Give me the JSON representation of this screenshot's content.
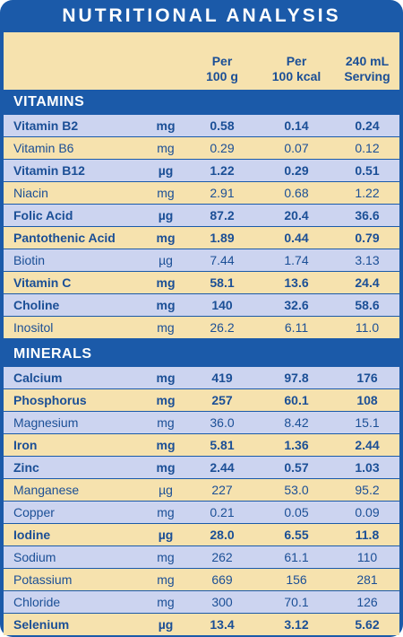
{
  "title": "NUTRITIONAL ANALYSIS",
  "colors": {
    "panel": "#1b5aa9",
    "header_bg": "#f6e2ae",
    "blue_row": "#ccd4f0",
    "cream_row": "#f6e2ae",
    "text": "#1b4f96"
  },
  "columns": {
    "per100g_line1": "Per",
    "per100g_line2": "100 g",
    "per100kcal_line1": "Per",
    "per100kcal_line2": "100 kcal",
    "serving_line1": "240 mL",
    "serving_line2": "Serving"
  },
  "vitamins": {
    "label": "VITAMINS",
    "rows": [
      {
        "name": "Vitamin B2",
        "unit": "mg",
        "v1": "0.58",
        "v2": "0.14",
        "v3": "0.24"
      },
      {
        "name": "Vitamin B6",
        "unit": "mg",
        "v1": "0.29",
        "v2": "0.07",
        "v3": "0.12"
      },
      {
        "name": "Vitamin B12",
        "unit": "µg",
        "v1": "1.22",
        "v2": "0.29",
        "v3": "0.51"
      },
      {
        "name": "Niacin",
        "unit": "mg",
        "v1": "2.91",
        "v2": "0.68",
        "v3": "1.22"
      },
      {
        "name": "Folic Acid",
        "unit": "µg",
        "v1": "87.2",
        "v2": "20.4",
        "v3": "36.6"
      },
      {
        "name": "Pantothenic Acid",
        "unit": "mg",
        "v1": "1.89",
        "v2": "0.44",
        "v3": "0.79"
      },
      {
        "name": "Biotin",
        "unit": "µg",
        "v1": "7.44",
        "v2": "1.74",
        "v3": "3.13"
      },
      {
        "name": "Vitamin C",
        "unit": "mg",
        "v1": "58.1",
        "v2": "13.6",
        "v3": "24.4"
      },
      {
        "name": "Choline",
        "unit": "mg",
        "v1": "140",
        "v2": "32.6",
        "v3": "58.6"
      },
      {
        "name": "Inositol",
        "unit": "mg",
        "v1": "26.2",
        "v2": "6.11",
        "v3": "11.0"
      }
    ]
  },
  "minerals": {
    "label": "MINERALS",
    "rows": [
      {
        "name": "Calcium",
        "unit": "mg",
        "v1": "419",
        "v2": "97.8",
        "v3": "176"
      },
      {
        "name": "Phosphorus",
        "unit": "mg",
        "v1": "257",
        "v2": "60.1",
        "v3": "108"
      },
      {
        "name": "Magnesium",
        "unit": "mg",
        "v1": "36.0",
        "v2": "8.42",
        "v3": "15.1"
      },
      {
        "name": "Iron",
        "unit": "mg",
        "v1": "5.81",
        "v2": "1.36",
        "v3": "2.44"
      },
      {
        "name": "Zinc",
        "unit": "mg",
        "v1": "2.44",
        "v2": "0.57",
        "v3": "1.03"
      },
      {
        "name": "Manganese",
        "unit": "µg",
        "v1": "227",
        "v2": "53.0",
        "v3": "95.2"
      },
      {
        "name": "Copper",
        "unit": "mg",
        "v1": "0.21",
        "v2": "0.05",
        "v3": "0.09"
      },
      {
        "name": "Iodine",
        "unit": "µg",
        "v1": "28.0",
        "v2": "6.55",
        "v3": "11.8"
      },
      {
        "name": "Sodium",
        "unit": "mg",
        "v1": "262",
        "v2": "61.1",
        "v3": "110"
      },
      {
        "name": "Potassium",
        "unit": "mg",
        "v1": "669",
        "v2": "156",
        "v3": "281"
      },
      {
        "name": "Chloride",
        "unit": "mg",
        "v1": "300",
        "v2": "70.1",
        "v3": "126"
      },
      {
        "name": "Selenium",
        "unit": "µg",
        "v1": "13.4",
        "v2": "3.12",
        "v3": "5.62"
      }
    ]
  }
}
